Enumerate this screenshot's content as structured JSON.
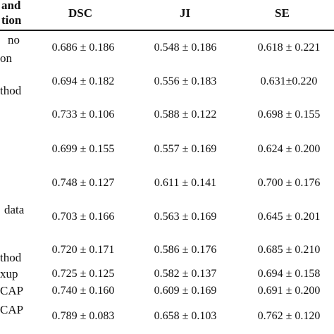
{
  "header": {
    "method_line1": "and",
    "method_line2": "tion",
    "columns": [
      "DSC",
      "JI",
      "SE"
    ]
  },
  "labels": {
    "row1_a": "no",
    "row1_b": "on",
    "row2": "thod",
    "row6": "data",
    "row8": "thod",
    "row9": "xup",
    "row10": "CAP",
    "row11": "CAP"
  },
  "rows": [
    {
      "dsc": "0.686 ± 0.186",
      "ji": "0.548 ± 0.186",
      "se": "0.618 ± 0.221"
    },
    {
      "dsc": "0.694 ± 0.182",
      "ji": "0.556 ± 0.183",
      "se": "0.631±0.220"
    },
    {
      "dsc": "0.733 ± 0.106",
      "ji": "0.588 ± 0.122",
      "se": "0.698 ± 0.155"
    },
    {
      "dsc": "0.699 ± 0.155",
      "ji": "0.557 ± 0.169",
      "se": "0.624 ± 0.200"
    },
    {
      "dsc": "0.748 ± 0.127",
      "ji": "0.611 ± 0.141",
      "se": "0.700 ± 0.176"
    },
    {
      "dsc": "0.703 ± 0.166",
      "ji": "0.563 ± 0.169",
      "se": "0.645 ± 0.201"
    },
    {
      "dsc": "0.720 ± 0.171",
      "ji": "0.586 ± 0.176",
      "se": "0.685 ± 0.210"
    },
    {
      "dsc": "0.725 ± 0.125",
      "ji": "0.582 ± 0.137",
      "se": "0.694 ± 0.158"
    },
    {
      "dsc": "0.740 ± 0.160",
      "ji": "0.609 ± 0.169",
      "se": "0.691 ± 0.200"
    },
    {
      "dsc": "0.789 ± 0.083",
      "ji": "0.658 ± 0.103",
      "se": "0.762 ± 0.120"
    }
  ]
}
